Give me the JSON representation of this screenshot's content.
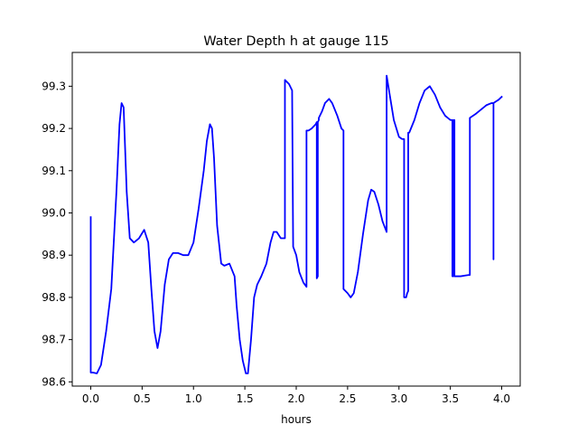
{
  "chart_data": {
    "type": "line",
    "title": "Water Depth h at gauge 115",
    "xlabel": "hours",
    "ylabel": "",
    "xlim": [
      -0.18,
      4.18
    ],
    "ylim": [
      98.59,
      99.38
    ],
    "xticks": [
      0.0,
      0.5,
      1.0,
      1.5,
      2.0,
      2.5,
      3.0,
      3.5,
      4.0
    ],
    "xtick_labels": [
      "0.0",
      "0.5",
      "1.0",
      "1.5",
      "2.0",
      "2.5",
      "3.0",
      "3.5",
      "4.0"
    ],
    "yticks": [
      98.6,
      98.7,
      98.8,
      98.9,
      99.0,
      99.1,
      99.2,
      99.3
    ],
    "ytick_labels": [
      "98.6",
      "98.7",
      "98.8",
      "98.9",
      "99.0",
      "99.1",
      "99.2",
      "99.3"
    ],
    "grid": false,
    "series": [
      {
        "color": "#0000ff",
        "x": [
          0.0,
          0.0,
          0.02,
          0.06,
          0.1,
          0.15,
          0.2,
          0.25,
          0.28,
          0.3,
          0.32,
          0.35,
          0.38,
          0.42,
          0.47,
          0.52,
          0.56,
          0.59,
          0.62,
          0.65,
          0.68,
          0.72,
          0.76,
          0.8,
          0.85,
          0.9,
          0.95,
          1.0,
          1.05,
          1.1,
          1.13,
          1.16,
          1.18,
          1.2,
          1.23,
          1.27,
          1.3,
          1.35,
          1.4,
          1.42,
          1.45,
          1.48,
          1.51,
          1.53,
          1.56,
          1.59,
          1.62,
          1.66,
          1.71,
          1.75,
          1.78,
          1.81,
          1.85,
          1.87,
          1.89,
          1.89,
          1.93,
          1.96,
          1.96,
          1.97,
          2.0,
          2.03,
          2.07,
          2.1,
          2.1,
          2.12,
          2.15,
          2.17,
          2.19,
          2.2,
          2.2,
          2.21,
          2.21,
          2.22,
          2.22,
          2.25,
          2.28,
          2.32,
          2.35,
          2.4,
          2.44,
          2.46,
          2.46,
          2.5,
          2.53,
          2.56,
          2.6,
          2.65,
          2.7,
          2.73,
          2.76,
          2.8,
          2.84,
          2.88,
          2.88,
          2.91,
          2.95,
          3.0,
          3.03,
          3.05,
          3.05,
          3.07,
          3.08,
          3.09,
          3.09,
          3.1,
          3.15,
          3.2,
          3.25,
          3.3,
          3.35,
          3.4,
          3.45,
          3.5,
          3.52,
          3.52,
          3.53,
          3.53,
          3.54,
          3.54,
          3.55,
          3.6,
          3.65,
          3.68,
          3.69,
          3.69,
          3.75,
          3.8,
          3.85,
          3.9,
          3.92,
          3.92,
          3.92,
          3.92,
          3.95,
          3.97,
          4.0
        ],
        "y": [
          98.99,
          98.622,
          98.622,
          98.62,
          98.64,
          98.72,
          98.82,
          99.05,
          99.21,
          99.26,
          99.25,
          99.05,
          98.94,
          98.93,
          98.94,
          98.96,
          98.93,
          98.82,
          98.72,
          98.68,
          98.72,
          98.83,
          98.89,
          98.905,
          98.905,
          98.9,
          98.9,
          98.93,
          99.01,
          99.1,
          99.17,
          99.21,
          99.2,
          99.13,
          98.97,
          98.88,
          98.875,
          98.88,
          98.85,
          98.78,
          98.7,
          98.65,
          98.62,
          98.62,
          98.7,
          98.8,
          98.83,
          98.85,
          98.88,
          98.93,
          98.955,
          98.955,
          98.94,
          98.94,
          98.94,
          99.315,
          99.305,
          99.29,
          99.29,
          98.92,
          98.9,
          98.86,
          98.835,
          98.825,
          99.195,
          99.195,
          99.2,
          99.205,
          99.21,
          99.215,
          98.845,
          98.85,
          99.215,
          99.22,
          99.225,
          99.24,
          99.26,
          99.27,
          99.26,
          99.23,
          99.2,
          99.195,
          98.82,
          98.81,
          98.8,
          98.81,
          98.86,
          98.95,
          99.03,
          99.055,
          99.05,
          99.02,
          98.98,
          98.955,
          99.325,
          99.28,
          99.22,
          99.18,
          99.175,
          99.175,
          98.8,
          98.8,
          98.81,
          98.815,
          99.19,
          99.19,
          99.22,
          99.26,
          99.29,
          99.3,
          99.28,
          99.25,
          99.23,
          99.22,
          99.22,
          98.85,
          98.85,
          99.22,
          99.22,
          98.85,
          98.85,
          98.85,
          98.852,
          98.853,
          98.853,
          99.225,
          99.235,
          99.245,
          99.255,
          99.26,
          99.26,
          98.89,
          98.89,
          99.26,
          99.265,
          99.268,
          99.275
        ]
      }
    ]
  }
}
